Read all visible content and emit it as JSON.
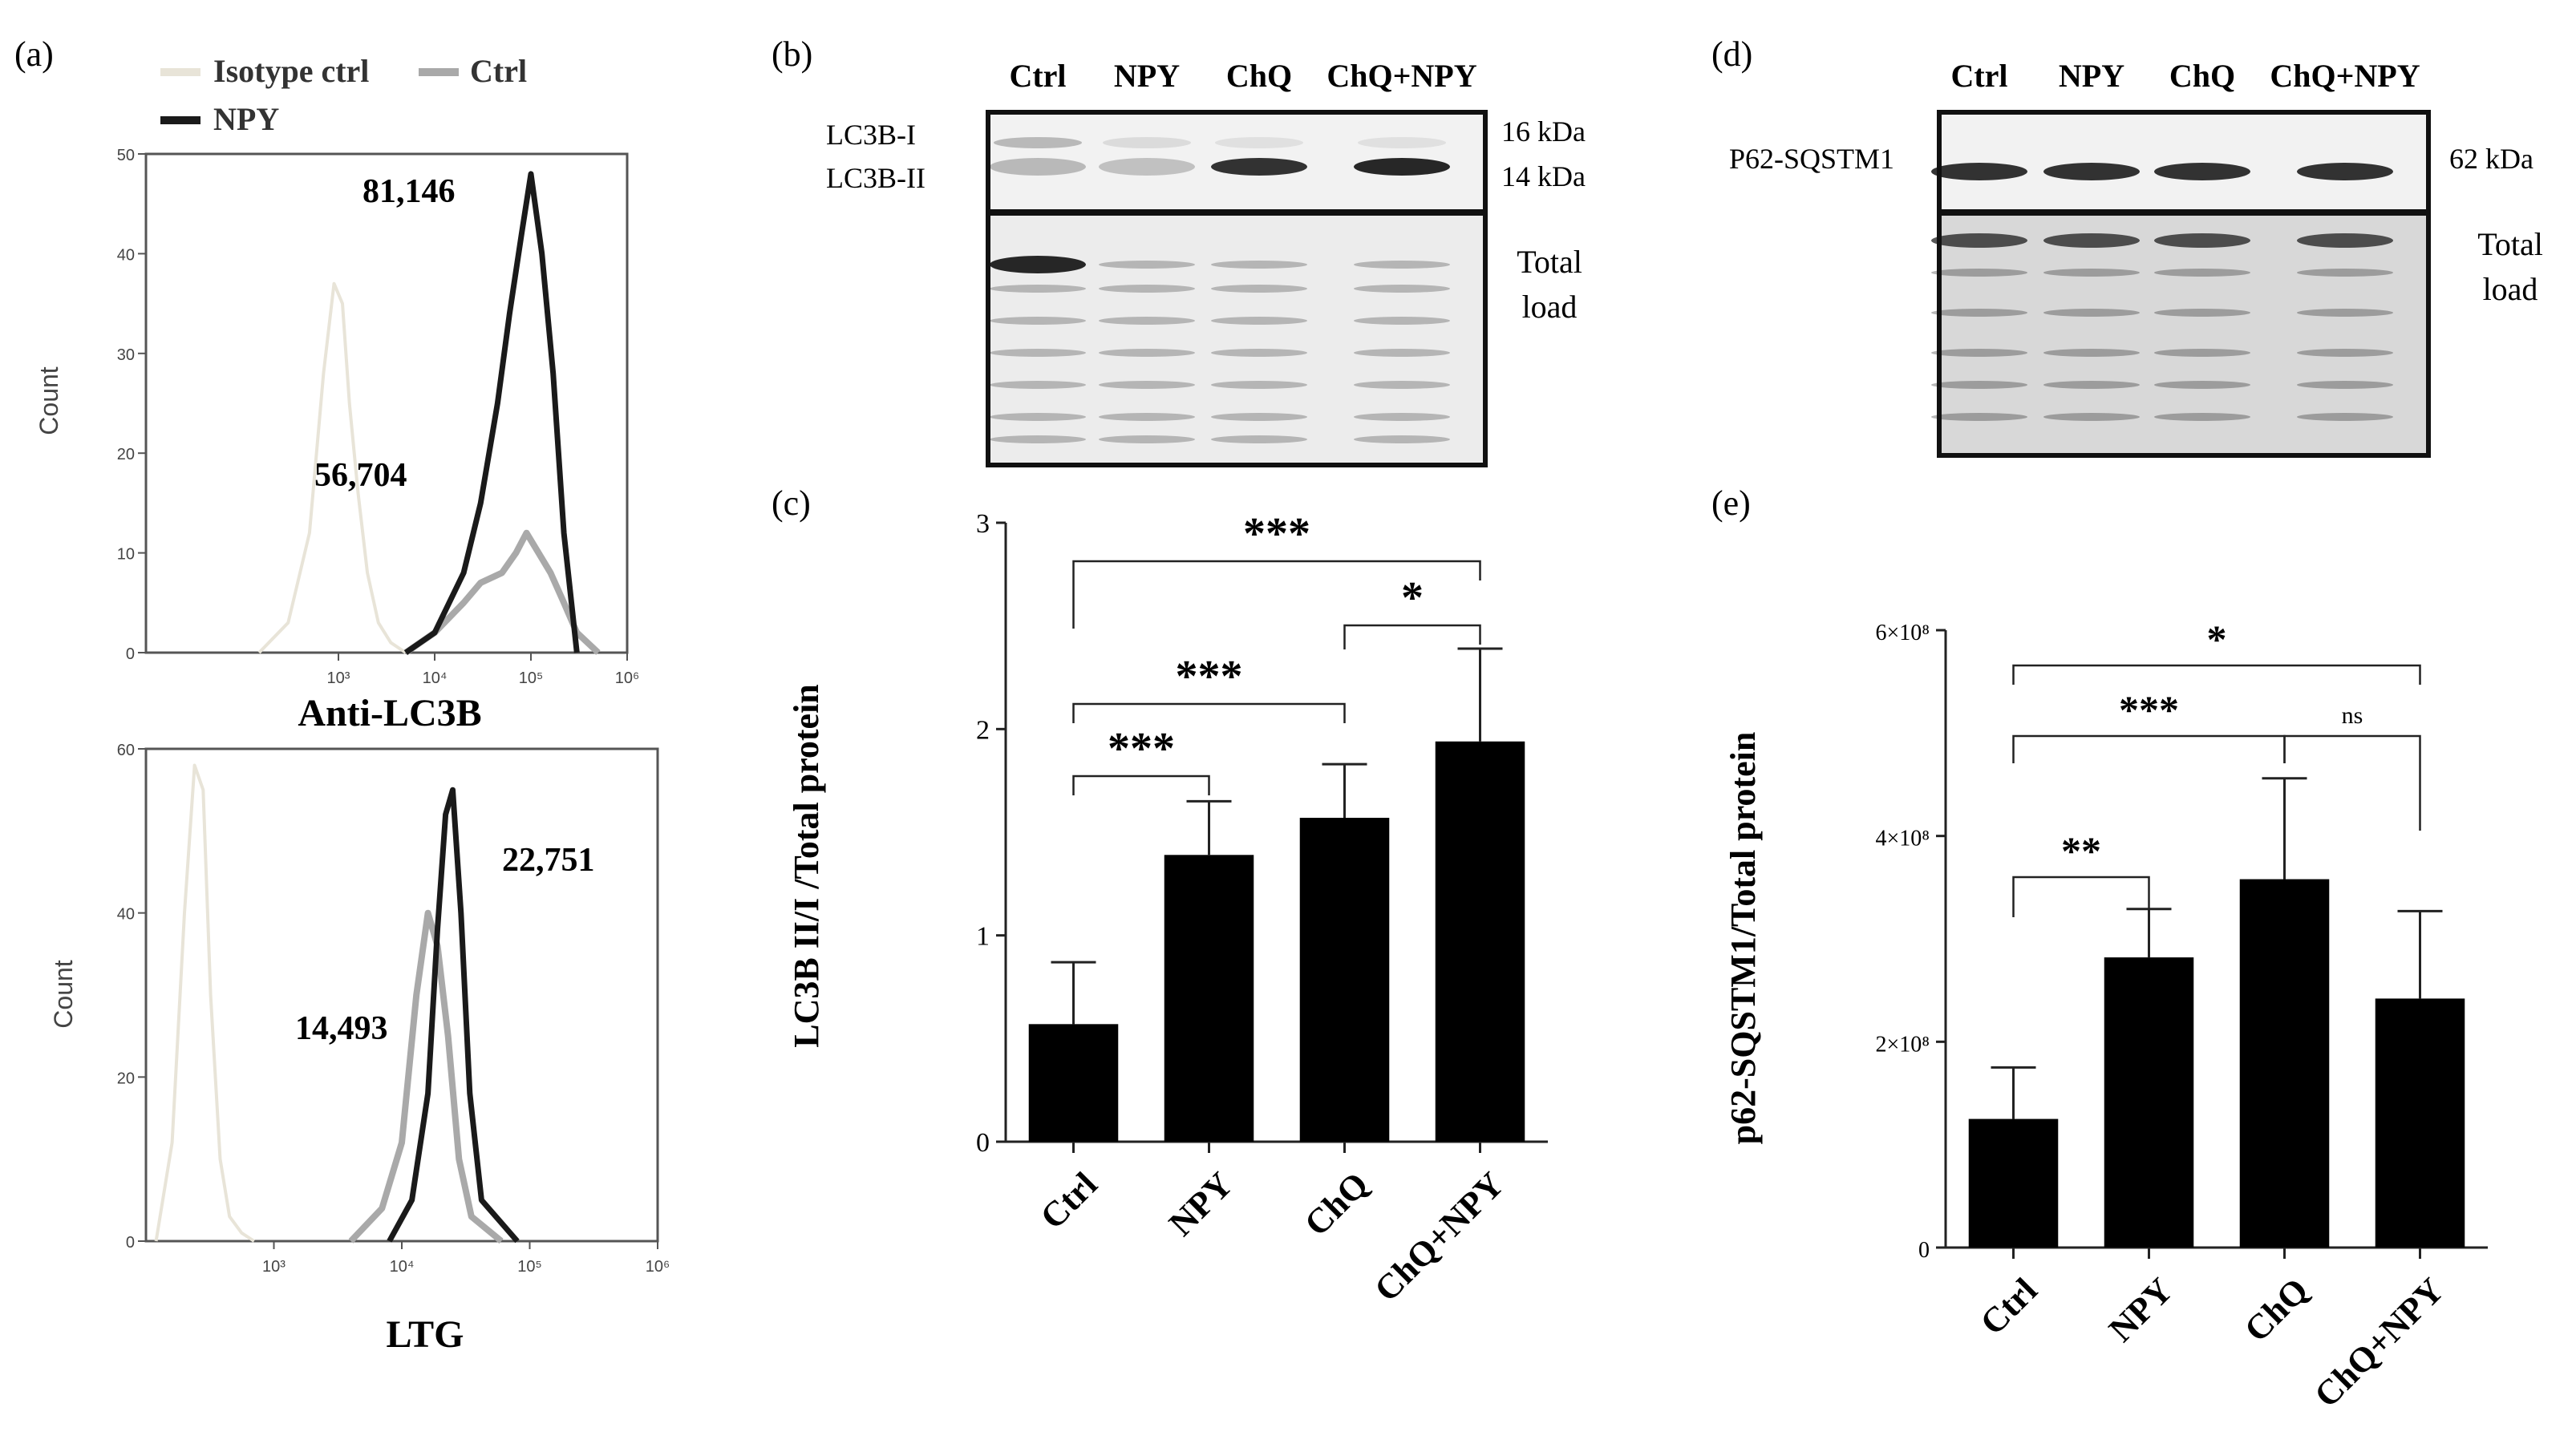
{
  "panel_labels": [
    "(a)",
    "(b)",
    "(c)",
    "(d)",
    "(e)"
  ],
  "flow_legend": [
    {
      "name": "Isotype ctrl",
      "color": "#e8e4d8"
    },
    {
      "name": "Ctrl",
      "color": "#a9a9a9"
    },
    {
      "name": "NPY",
      "color": "#1a1a1a"
    }
  ],
  "western_b": {
    "lanes": [
      "Ctrl",
      "NPY",
      "ChQ",
      "ChQ+NPY"
    ],
    "band_labels": [
      "LC3B-I",
      "LC3B-II"
    ],
    "kda_labels": [
      "16 kDa",
      "14 kDa"
    ],
    "total_load": [
      "Total",
      "load"
    ]
  },
  "western_d": {
    "lanes": [
      "Ctrl",
      "NPY",
      "ChQ",
      "ChQ+NPY"
    ],
    "band_label": "P62-SQSTM1",
    "kda_label": "62 kDa",
    "total_load": [
      "Total",
      "load"
    ]
  },
  "chart_data": [
    {
      "type": "line",
      "panel": "a-top",
      "xlabel": "Anti-LC3B",
      "ylabel": "Count",
      "x_scale": "log",
      "xlim": [
        10,
        1000000
      ],
      "ylim": [
        0,
        50
      ],
      "x_ticks": [
        "10³",
        "10⁴",
        "10⁵",
        "10⁶"
      ],
      "y_ticks": [
        "0",
        "10",
        "20",
        "30",
        "40",
        "50"
      ],
      "annotations": [
        "81,146",
        "56,704"
      ],
      "series": [
        {
          "name": "Isotype ctrl",
          "x": [
            150,
            300,
            500,
            700,
            900,
            1100,
            1300,
            1600,
            2000,
            2600,
            3500,
            5000
          ],
          "values": [
            0,
            3,
            12,
            28,
            37,
            35,
            25,
            16,
            8,
            3,
            1,
            0
          ]
        },
        {
          "name": "Ctrl",
          "x": [
            5000,
            10000,
            20000,
            30000,
            50000,
            70000,
            90000,
            120000,
            160000,
            220000,
            300000,
            500000
          ],
          "values": [
            0,
            2,
            5,
            7,
            8,
            10,
            12,
            10,
            8,
            5,
            2,
            0
          ]
        },
        {
          "name": "NPY",
          "x": [
            5000,
            10000,
            20000,
            30000,
            45000,
            60000,
            80000,
            100000,
            130000,
            170000,
            220000,
            300000
          ],
          "values": [
            0,
            2,
            8,
            15,
            25,
            34,
            42,
            48,
            40,
            28,
            12,
            0
          ]
        }
      ]
    },
    {
      "type": "line",
      "panel": "a-bottom",
      "xlabel": "LTG",
      "ylabel": "Count",
      "x_scale": "log",
      "xlim": [
        100,
        1000000
      ],
      "ylim": [
        0,
        60
      ],
      "x_ticks": [
        "10³",
        "10⁴",
        "10⁵",
        "10⁶"
      ],
      "y_ticks": [
        "0",
        "20",
        "40",
        "60"
      ],
      "annotations": [
        "22,751",
        "14,493"
      ],
      "series": [
        {
          "name": "Isotype ctrl",
          "x": [
            120,
            160,
            200,
            240,
            280,
            320,
            380,
            450,
            560,
            700
          ],
          "values": [
            0,
            12,
            40,
            58,
            55,
            30,
            10,
            3,
            1,
            0
          ]
        },
        {
          "name": "Ctrl",
          "x": [
            4000,
            7000,
            10000,
            13000,
            16000,
            19000,
            23000,
            28000,
            35000,
            60000
          ],
          "values": [
            0,
            4,
            12,
            30,
            40,
            36,
            25,
            10,
            3,
            0
          ]
        },
        {
          "name": "NPY",
          "x": [
            8000,
            12000,
            16000,
            19000,
            22000,
            25000,
            29000,
            34000,
            42000,
            80000
          ],
          "values": [
            0,
            5,
            18,
            38,
            52,
            55,
            40,
            18,
            5,
            0
          ]
        }
      ]
    },
    {
      "type": "bar",
      "panel": "c",
      "ylabel": "LC3B II/I /Total protein",
      "categories": [
        "Ctrl",
        "NPY",
        "ChQ",
        "ChQ+NPY"
      ],
      "values": [
        0.57,
        1.39,
        1.57,
        1.94
      ],
      "errors": [
        0.3,
        0.26,
        0.26,
        0.45
      ],
      "ylim": [
        0,
        3
      ],
      "y_ticks": [
        "0",
        "1",
        "2",
        "3"
      ],
      "significance": [
        {
          "from": "Ctrl",
          "to": "NPY",
          "label": "***"
        },
        {
          "from": "Ctrl",
          "to": "ChQ",
          "label": "***"
        },
        {
          "from": "ChQ",
          "to": "ChQ+NPY",
          "label": "*"
        },
        {
          "from": "Ctrl",
          "to": "ChQ+NPY",
          "label": "***"
        }
      ]
    },
    {
      "type": "bar",
      "panel": "e",
      "ylabel": "p62-SQSTM1/Total protein",
      "categories": [
        "Ctrl",
        "NPY",
        "ChQ",
        "ChQ+NPY"
      ],
      "values": [
        125000000,
        282000000,
        358000000,
        242000000
      ],
      "errors": [
        50000000,
        47000000,
        98000000,
        85000000
      ],
      "ylim": [
        0,
        600000000
      ],
      "y_ticks": [
        "0",
        "2×10⁸",
        "4×10⁸",
        "6×10⁸"
      ],
      "significance": [
        {
          "from": "Ctrl",
          "to": "NPY",
          "label": "**"
        },
        {
          "from": "Ctrl",
          "to": "ChQ",
          "label": "***"
        },
        {
          "from": "ChQ",
          "to": "ChQ+NPY",
          "label": "ns"
        },
        {
          "from": "Ctrl",
          "to": "ChQ+NPY",
          "label": "*"
        }
      ]
    }
  ]
}
